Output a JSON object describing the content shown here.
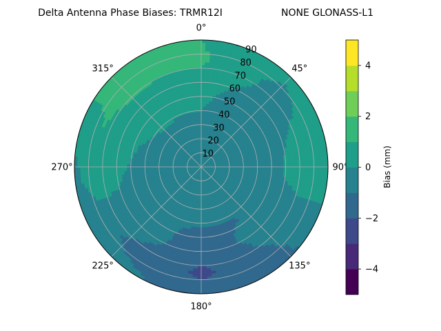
{
  "chart_data": {
    "type": "polar-contour",
    "title_left": "Delta Antenna Phase Biases: TRMR12I",
    "title_right": "NONE GLONASS-L1",
    "angle_labels": [
      "0°",
      "45°",
      "90°",
      "135°",
      "180°",
      "225°",
      "270°",
      "315°"
    ],
    "radial_labels": [
      "10",
      "20",
      "30",
      "40",
      "50",
      "60",
      "70",
      "80",
      "90"
    ],
    "radial_range": [
      0,
      90
    ],
    "grid": true,
    "colorbar": {
      "label": "Bias (mm)",
      "range": [
        -5,
        5
      ],
      "levels": [
        -5,
        -4.5,
        -4,
        -3.5,
        -3,
        -2.5,
        -2,
        -1.5,
        -1,
        -0.5,
        0,
        0.5,
        1,
        1.5,
        2,
        2.5,
        3,
        3.5,
        4,
        4.5,
        5
      ],
      "tick_labels": [
        "−4",
        "−2",
        "0",
        "2",
        "4"
      ],
      "tick_values": [
        -4,
        -2,
        0,
        2,
        4
      ],
      "colors": [
        "#440154",
        "#482878",
        "#3e4989",
        "#31688e",
        "#26828e",
        "#1f9e89",
        "#35b779",
        "#6ece58",
        "#b5de2b",
        "#fde725"
      ]
    },
    "bias_field": {
      "zenith_deg": [
        0,
        15,
        30,
        45,
        60,
        75,
        90
      ],
      "azimuth_deg": [
        0,
        45,
        90,
        135,
        180,
        225,
        270,
        315
      ],
      "values_mm": [
        [
          -0.8,
          -0.8,
          -0.8,
          -0.8,
          -0.8,
          -0.8,
          -0.8,
          -0.8
        ],
        [
          -0.6,
          -0.7,
          -0.5,
          -0.4,
          -0.6,
          -0.4,
          -0.4,
          -0.6
        ],
        [
          -0.2,
          -0.6,
          -0.3,
          -0.7,
          -0.4,
          -0.7,
          -0.1,
          -0.2
        ],
        [
          0.1,
          -0.7,
          -0.5,
          -1.0,
          -1.1,
          -0.8,
          -0.2,
          0.2
        ],
        [
          0.4,
          -0.4,
          0.1,
          -0.5,
          -1.6,
          -0.5,
          0.2,
          0.8
        ],
        [
          1.2,
          -0.3,
          0.6,
          -0.9,
          -2.2,
          -1.2,
          0.8,
          1.2
        ],
        [
          1.0,
          0.2,
          0.7,
          -1.2,
          -1.7,
          -0.5,
          -0.2,
          1.4
        ]
      ]
    }
  }
}
